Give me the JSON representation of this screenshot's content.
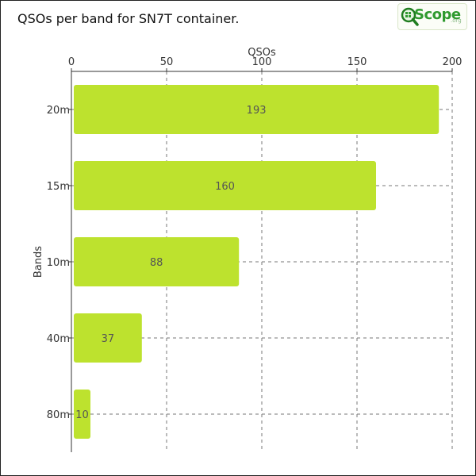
{
  "chart_data": {
    "type": "bar",
    "orientation": "horizontal",
    "title": "QSOs per band for SN7T container.",
    "xlabel": "QSOs",
    "ylabel": "Bands",
    "categories": [
      "20m",
      "15m",
      "10m",
      "40m",
      "80m"
    ],
    "values": [
      193,
      160,
      88,
      37,
      10
    ],
    "xlim": [
      0,
      200
    ],
    "xticks": [
      0,
      50,
      100,
      150,
      200
    ],
    "x_axis_position": "top",
    "grid": true,
    "legend": "none",
    "bar_color": "#bde22e"
  },
  "logo": {
    "word": "Scope",
    "sub": ".org",
    "color": "#2f9a2f"
  }
}
